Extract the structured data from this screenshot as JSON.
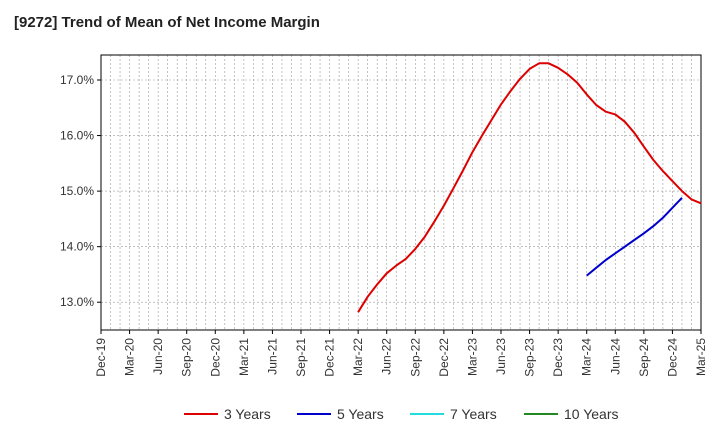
{
  "colors": {
    "three_years": "#dd0000",
    "five_years": "#0000cc",
    "seven_years": "#22dddd",
    "ten_years": "#228822",
    "grid": "#999999",
    "axis": "#000000"
  },
  "chart_data": {
    "type": "line",
    "title": "[9272]  Trend of Mean of Net Income Margin",
    "xlabel": "",
    "ylabel": "",
    "x_ticks": [
      "Dec-19",
      "Mar-20",
      "Jun-20",
      "Sep-20",
      "Dec-20",
      "Mar-21",
      "Jun-21",
      "Sep-21",
      "Dec-21",
      "Mar-22",
      "Jun-22",
      "Sep-22",
      "Dec-22",
      "Mar-23",
      "Jun-23",
      "Sep-23",
      "Dec-23",
      "Mar-24",
      "Jun-24",
      "Sep-24",
      "Dec-24",
      "Mar-25"
    ],
    "x_range": [
      "2019-12",
      "2025-03"
    ],
    "ylim": [
      12.5,
      17.45
    ],
    "y_ticks": [
      {
        "value": 13.0,
        "label": "13.0%"
      },
      {
        "value": 14.0,
        "label": "14.0%"
      },
      {
        "value": 15.0,
        "label": "15.0%"
      },
      {
        "value": 16.0,
        "label": "16.0%"
      },
      {
        "value": 17.0,
        "label": "17.0%"
      }
    ],
    "grid": true,
    "legend_position": "bottom",
    "series": [
      {
        "name": "3 Years",
        "color_key": "three_years",
        "points": [
          [
            "2022-03",
            12.82
          ],
          [
            "2022-04",
            13.1
          ],
          [
            "2022-05",
            13.32
          ],
          [
            "2022-06",
            13.52
          ],
          [
            "2022-07",
            13.66
          ],
          [
            "2022-08",
            13.78
          ],
          [
            "2022-09",
            13.96
          ],
          [
            "2022-10",
            14.18
          ],
          [
            "2022-11",
            14.45
          ],
          [
            "2022-12",
            14.74
          ],
          [
            "2023-01",
            15.05
          ],
          [
            "2023-02",
            15.37
          ],
          [
            "2023-03",
            15.7
          ],
          [
            "2023-04",
            16.0
          ],
          [
            "2023-05",
            16.28
          ],
          [
            "2023-06",
            16.56
          ],
          [
            "2023-07",
            16.8
          ],
          [
            "2023-08",
            17.02
          ],
          [
            "2023-09",
            17.2
          ],
          [
            "2023-10",
            17.3
          ],
          [
            "2023-11",
            17.3
          ],
          [
            "2023-12",
            17.22
          ],
          [
            "2024-01",
            17.1
          ],
          [
            "2024-02",
            16.95
          ],
          [
            "2024-03",
            16.74
          ],
          [
            "2024-04",
            16.55
          ],
          [
            "2024-05",
            16.43
          ],
          [
            "2024-06",
            16.38
          ],
          [
            "2024-07",
            16.25
          ],
          [
            "2024-08",
            16.05
          ],
          [
            "2024-09",
            15.8
          ],
          [
            "2024-10",
            15.56
          ],
          [
            "2024-11",
            15.36
          ],
          [
            "2024-12",
            15.18
          ],
          [
            "2025-01",
            15.0
          ],
          [
            "2025-02",
            14.85
          ],
          [
            "2025-03",
            14.78
          ]
        ]
      },
      {
        "name": "5 Years",
        "color_key": "five_years",
        "points": [
          [
            "2024-03",
            13.48
          ],
          [
            "2024-04",
            13.62
          ],
          [
            "2024-05",
            13.76
          ],
          [
            "2024-06",
            13.88
          ],
          [
            "2024-07",
            14.0
          ],
          [
            "2024-08",
            14.12
          ],
          [
            "2024-09",
            14.24
          ],
          [
            "2024-10",
            14.37
          ],
          [
            "2024-11",
            14.52
          ],
          [
            "2024-12",
            14.7
          ],
          [
            "2025-01",
            14.88
          ]
        ]
      },
      {
        "name": "7 Years",
        "color_key": "seven_years",
        "points": []
      },
      {
        "name": "10 Years",
        "color_key": "ten_years",
        "points": []
      }
    ]
  }
}
